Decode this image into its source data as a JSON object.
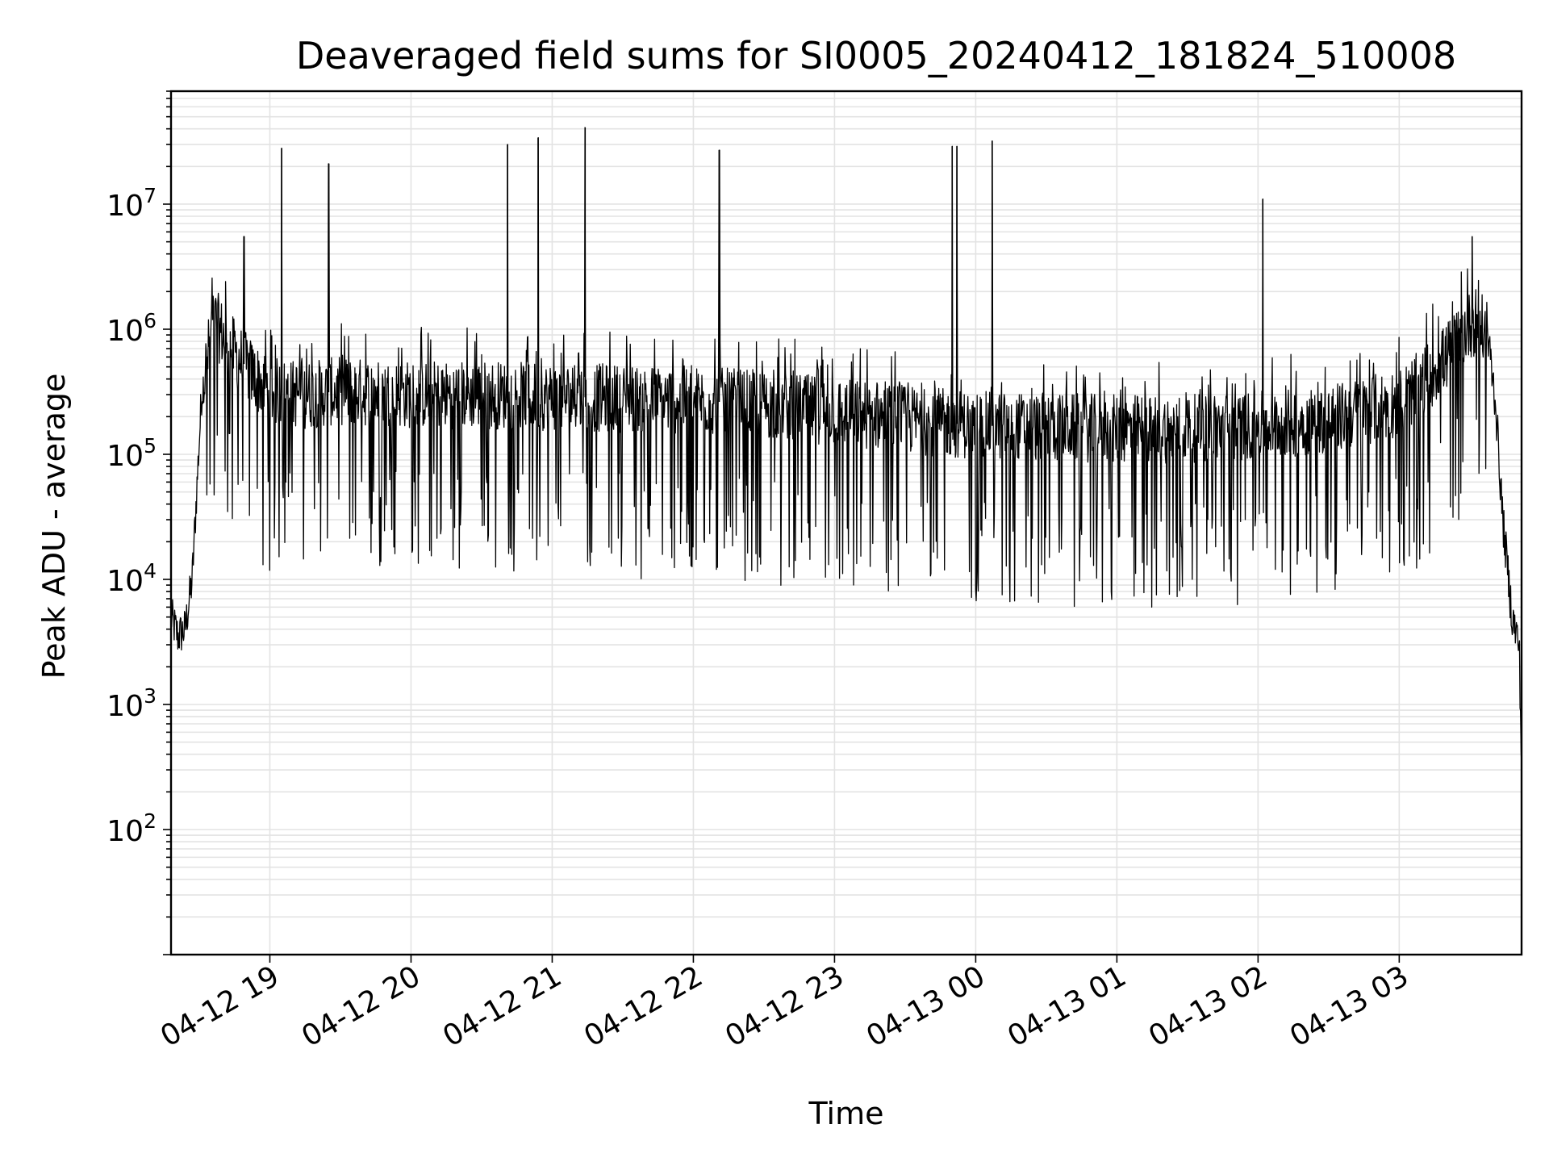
{
  "chart_data": {
    "type": "line",
    "title": "Deaveraged field sums for SI0005_20240412_181824_510008",
    "xlabel": "Time",
    "ylabel": "Peak ADU - average",
    "yscale": "log",
    "grid": true,
    "line_color": "#000000",
    "x_range": [
      "04-12 18:18",
      "04-13 03:52"
    ],
    "ylim": [
      10,
      80000000
    ],
    "x_ticks": [
      "04-12 19",
      "04-12 20",
      "04-12 21",
      "04-12 22",
      "04-12 23",
      "04-13 00",
      "04-13 01",
      "04-13 02",
      "04-13 03"
    ],
    "y_ticks": [
      {
        "base": "10",
        "exp": "2",
        "value": 100
      },
      {
        "base": "10",
        "exp": "3",
        "value": 1000
      },
      {
        "base": "10",
        "exp": "4",
        "value": 10000
      },
      {
        "base": "10",
        "exp": "5",
        "value": 100000
      },
      {
        "base": "10",
        "exp": "6",
        "value": 1000000
      },
      {
        "base": "10",
        "exp": "7",
        "value": 10000000
      }
    ],
    "series": [
      {
        "x": [
          "04-12 18:18",
          "04-12 18:21",
          "04-12 18:24",
          "04-12 18:27",
          "04-12 18:31",
          "04-12 18:36",
          "04-12 18:40",
          "04-12 18:45",
          "04-12 18:52",
          "04-12 19:00",
          "04-12 19:15",
          "04-12 19:30",
          "04-12 20:00",
          "04-12 20:30",
          "04-12 21:00",
          "04-12 21:30",
          "04-12 22:00",
          "04-12 22:30",
          "04-12 23:00",
          "04-12 23:30",
          "04-13 00:00",
          "04-13 00:30",
          "04-13 01:00",
          "04-13 01:30",
          "04-13 02:00",
          "04-13 02:30",
          "04-13 03:00",
          "04-13 03:10",
          "04-13 03:20",
          "04-13 03:27",
          "04-13 03:33",
          "04-13 03:38",
          "04-13 03:41",
          "04-13 03:44",
          "04-13 03:48",
          "04-13 03:51",
          "04-13 03:52"
        ],
        "y": [
          5000,
          3500,
          4000,
          10000,
          300000,
          1200000,
          900000,
          650000,
          450000,
          320000,
          300000,
          320000,
          300000,
          300000,
          290000,
          280000,
          270000,
          250000,
          220000,
          190000,
          170000,
          165000,
          160000,
          160000,
          170000,
          190000,
          260000,
          380000,
          600000,
          950000,
          1200000,
          800000,
          250000,
          30000,
          5000,
          3000,
          300
        ],
        "spikes": [
          {
            "x": "04-12 18:49",
            "y": 5500000
          },
          {
            "x": "04-12 19:05",
            "y": 28000000
          },
          {
            "x": "04-12 19:25",
            "y": 21000000
          },
          {
            "x": "04-12 20:41",
            "y": 30000000
          },
          {
            "x": "04-12 20:54",
            "y": 34000000
          },
          {
            "x": "04-12 21:14",
            "y": 41000000
          },
          {
            "x": "04-12 22:11",
            "y": 27000000
          },
          {
            "x": "04-12 23:50",
            "y": 29000000
          },
          {
            "x": "04-12 23:52",
            "y": 29000000
          },
          {
            "x": "04-13 00:07",
            "y": 32000000
          },
          {
            "x": "04-13 02:02",
            "y": 11000000
          },
          {
            "x": "04-13 03:31",
            "y": 5500000
          }
        ]
      }
    ]
  }
}
